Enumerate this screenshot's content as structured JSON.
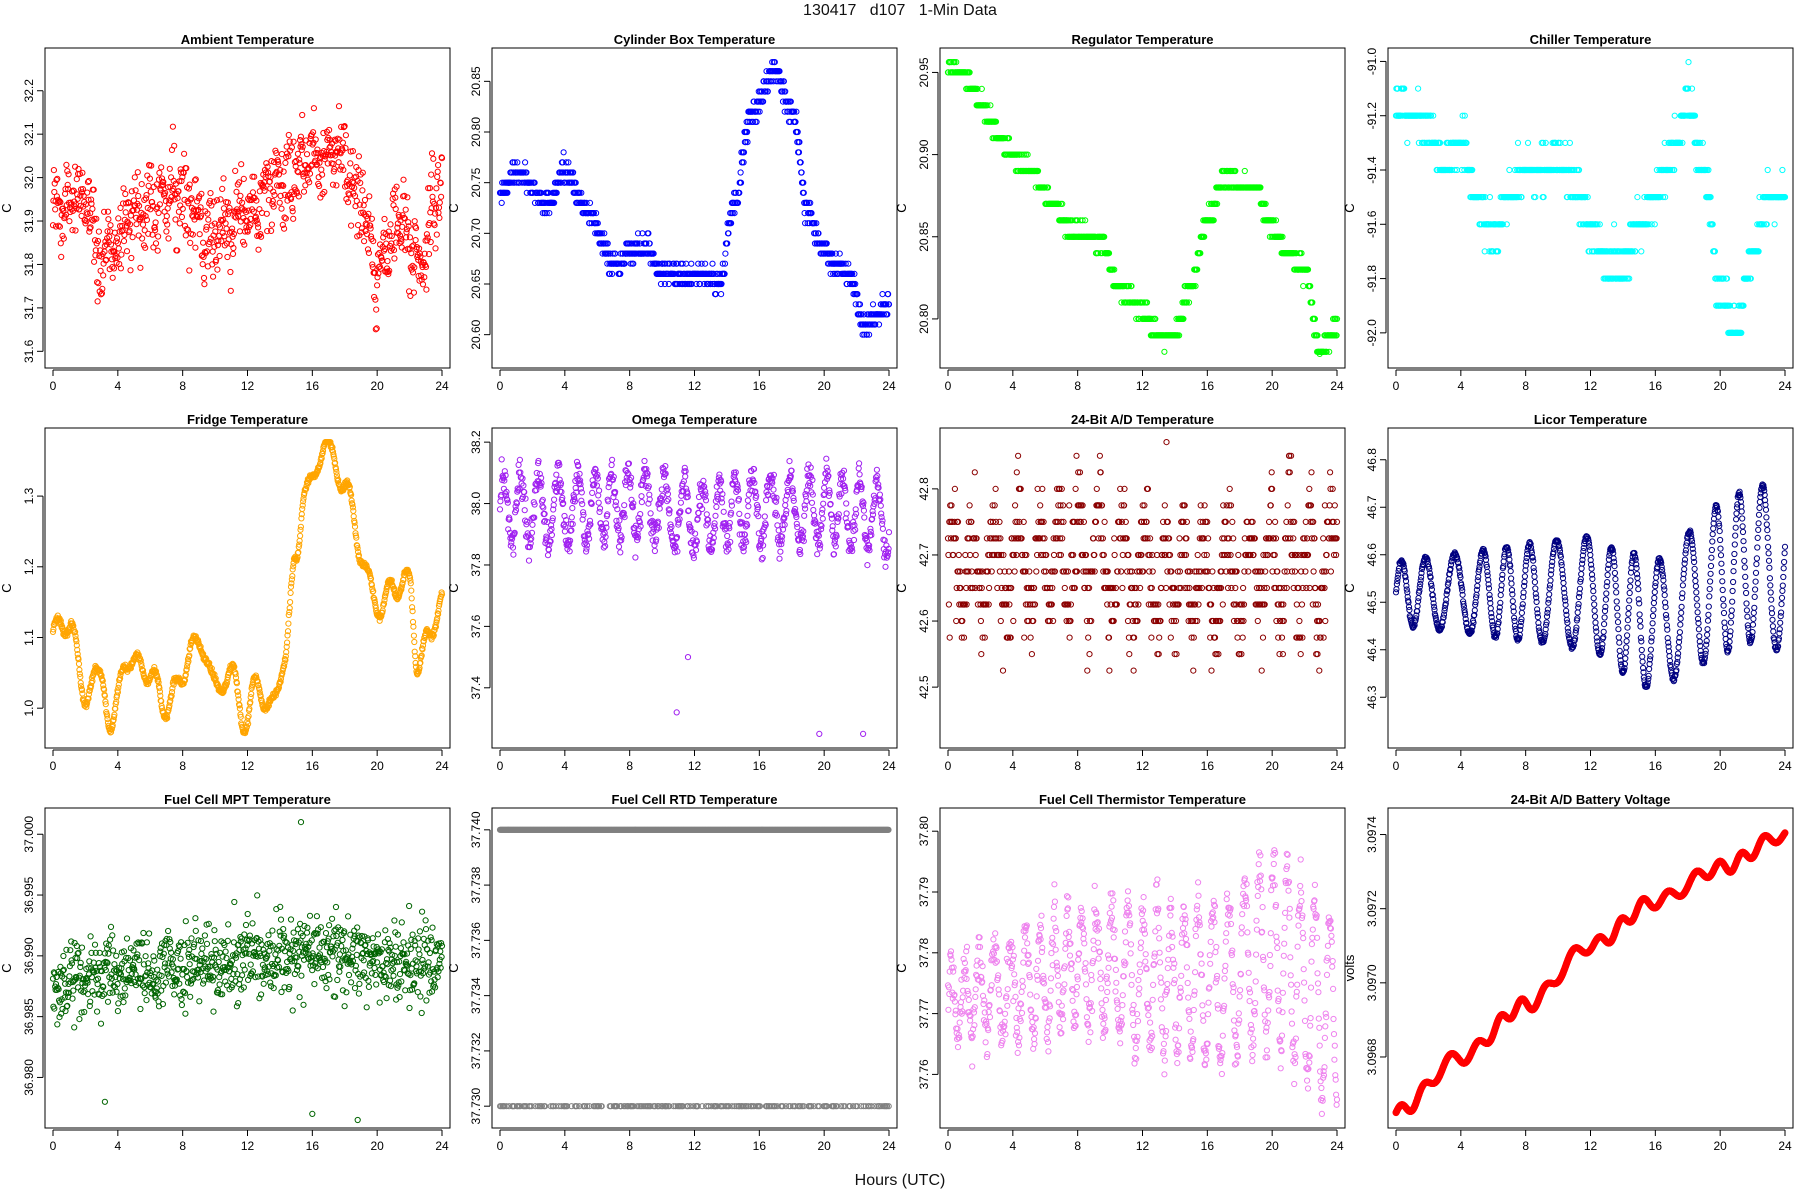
{
  "page": {
    "title": "130417   d107   1-Min Data",
    "xlabel": "Hours (UTC)"
  },
  "chart_data": [
    {
      "type": "scatter",
      "title": "Ambient Temperature",
      "ylabel": "C",
      "color": "#ff0000",
      "xlim": [
        0,
        24
      ],
      "xticks": [
        0,
        4,
        8,
        12,
        16,
        20,
        24
      ],
      "ylim": [
        31.58,
        32.28
      ],
      "yticks": [
        31.6,
        31.7,
        31.8,
        31.9,
        32.0,
        32.1,
        32.2
      ],
      "ytick_decimals": 1,
      "profile": {
        "knots": [
          [
            0,
            31.92
          ],
          [
            2,
            31.95
          ],
          [
            3,
            31.82
          ],
          [
            5,
            31.92
          ],
          [
            8,
            31.97
          ],
          [
            9.5,
            31.85
          ],
          [
            12,
            31.92
          ],
          [
            14,
            31.98
          ],
          [
            16,
            32.05
          ],
          [
            17.5,
            32.07
          ],
          [
            19,
            31.95
          ],
          [
            20,
            31.78
          ],
          [
            21.5,
            31.92
          ],
          [
            22.5,
            31.8
          ],
          [
            24,
            31.98
          ]
        ],
        "noise": 0.09,
        "osc_amp": 0.03,
        "osc_period": 0.8
      }
    },
    {
      "type": "scatter",
      "title": "Cylinder Box Temperature",
      "ylabel": "C",
      "color": "#0000ff",
      "xlim": [
        0,
        24
      ],
      "xticks": [
        0,
        4,
        8,
        12,
        16,
        20,
        24
      ],
      "ylim": [
        20.575,
        20.875
      ],
      "yticks": [
        20.6,
        20.65,
        20.7,
        20.75,
        20.8,
        20.85
      ],
      "ytick_decimals": 2,
      "profile": {
        "knots": [
          [
            0,
            20.74
          ],
          [
            1,
            20.76
          ],
          [
            3,
            20.73
          ],
          [
            4,
            20.76
          ],
          [
            5.5,
            20.72
          ],
          [
            7,
            20.67
          ],
          [
            9,
            20.69
          ],
          [
            10,
            20.66
          ],
          [
            12.5,
            20.66
          ],
          [
            13.5,
            20.65
          ],
          [
            14.5,
            20.73
          ],
          [
            15.5,
            20.82
          ],
          [
            17,
            20.86
          ],
          [
            18,
            20.82
          ],
          [
            19,
            20.72
          ],
          [
            20,
            20.68
          ],
          [
            21.5,
            20.66
          ],
          [
            22.5,
            20.61
          ],
          [
            24,
            20.63
          ]
        ],
        "noise": 0.012,
        "quant": 0.01
      }
    },
    {
      "type": "scatter",
      "title": "Regulator Temperature",
      "ylabel": "C",
      "color": "#00ff00",
      "xlim": [
        0,
        24
      ],
      "xticks": [
        0,
        4,
        8,
        12,
        16,
        20,
        24
      ],
      "ylim": [
        20.775,
        20.96
      ],
      "yticks": [
        20.8,
        20.85,
        20.9,
        20.95
      ],
      "ytick_decimals": 2,
      "profile": {
        "knots": [
          [
            0,
            20.955
          ],
          [
            1,
            20.95
          ],
          [
            2,
            20.93
          ],
          [
            3.5,
            20.905
          ],
          [
            5,
            20.89
          ],
          [
            6.5,
            20.87
          ],
          [
            7.5,
            20.855
          ],
          [
            9.5,
            20.845
          ],
          [
            10.5,
            20.82
          ],
          [
            12,
            20.805
          ],
          [
            13,
            20.79
          ],
          [
            14,
            20.79
          ],
          [
            15,
            20.82
          ],
          [
            16,
            20.86
          ],
          [
            17,
            20.885
          ],
          [
            19,
            20.88
          ],
          [
            20,
            20.855
          ],
          [
            21,
            20.84
          ],
          [
            22,
            20.83
          ],
          [
            23,
            20.78
          ],
          [
            24,
            20.795
          ]
        ],
        "noise": 0.005,
        "quant": 0.01
      }
    },
    {
      "type": "scatter",
      "title": "Chiller Temperature",
      "ylabel": "C",
      "color": "#00ffff",
      "xlim": [
        0,
        24
      ],
      "xticks": [
        0,
        4,
        8,
        12,
        16,
        20,
        24
      ],
      "ylim": [
        -92.1,
        -90.98
      ],
      "yticks": [
        -92.0,
        -91.8,
        -91.6,
        -91.4,
        -91.2,
        -91.0
      ],
      "ytick_decimals": 1,
      "profile": {
        "knots": [
          [
            0,
            -91.15
          ],
          [
            1,
            -91.2
          ],
          [
            2,
            -91.25
          ],
          [
            3,
            -91.4
          ],
          [
            4,
            -91.3
          ],
          [
            5,
            -91.5
          ],
          [
            6,
            -91.65
          ],
          [
            7,
            -91.5
          ],
          [
            8,
            -91.4
          ],
          [
            9,
            -91.4
          ],
          [
            10,
            -91.35
          ],
          [
            11,
            -91.45
          ],
          [
            12,
            -91.6
          ],
          [
            13,
            -91.75
          ],
          [
            14,
            -91.75
          ],
          [
            15,
            -91.6
          ],
          [
            16,
            -91.5
          ],
          [
            17,
            -91.35
          ],
          [
            18,
            -91.15
          ],
          [
            19,
            -91.4
          ],
          [
            20,
            -91.85
          ],
          [
            21,
            -92.0
          ],
          [
            22,
            -91.7
          ],
          [
            23,
            -91.5
          ],
          [
            24,
            -91.5
          ]
        ],
        "noise": 0.07,
        "quant": 0.1
      }
    },
    {
      "type": "scatter",
      "title": "Fridge Temperature",
      "ylabel": "C",
      "color": "#ffa500",
      "xlim": [
        0,
        24
      ],
      "xticks": [
        0,
        4,
        8,
        12,
        16,
        20,
        24
      ],
      "ylim": [
        0.955,
        1.385
      ],
      "yticks": [
        1.0,
        1.1,
        1.2,
        1.3
      ],
      "ytick_decimals": 1,
      "profile": {
        "knots": [
          [
            0,
            1.11
          ],
          [
            1,
            1.12
          ],
          [
            2,
            1.02
          ],
          [
            3,
            1.05
          ],
          [
            3.6,
            0.97
          ],
          [
            4.5,
            1.07
          ],
          [
            6,
            1.05
          ],
          [
            7,
            1.0
          ],
          [
            8,
            1.05
          ],
          [
            9,
            1.1
          ],
          [
            10,
            1.03
          ],
          [
            11,
            1.05
          ],
          [
            11.8,
            0.98
          ],
          [
            12.5,
            1.03
          ],
          [
            13.5,
            1.0
          ],
          [
            14.3,
            1.07
          ],
          [
            15,
            1.22
          ],
          [
            15.5,
            1.3
          ],
          [
            16.8,
            1.37
          ],
          [
            18,
            1.32
          ],
          [
            19,
            1.22
          ],
          [
            20,
            1.14
          ],
          [
            21,
            1.17
          ],
          [
            22,
            1.18
          ],
          [
            22.5,
            1.06
          ],
          [
            23.2,
            1.1
          ],
          [
            24,
            1.16
          ]
        ],
        "noise": 0.004,
        "osc_amp": 0.015,
        "osc_period": 1.2
      }
    },
    {
      "type": "scatter",
      "title": "Omega Temperature",
      "ylabel": "C",
      "color": "#a020f0",
      "xlim": [
        0,
        24
      ],
      "xticks": [
        0,
        4,
        8,
        12,
        16,
        20,
        24
      ],
      "ylim": [
        37.23,
        38.22
      ],
      "yticks": [
        37.4,
        37.6,
        37.8,
        38.0,
        38.2
      ],
      "ytick_decimals": 1,
      "profile": {
        "knots": [
          [
            0,
            37.98
          ],
          [
            4,
            37.98
          ],
          [
            8,
            38.0
          ],
          [
            12,
            37.96
          ],
          [
            16,
            37.98
          ],
          [
            20,
            37.98
          ],
          [
            24,
            37.95
          ]
        ],
        "noise": 0.05,
        "osc_amp": 0.11,
        "osc_period": 1.1
      },
      "outliers": [
        [
          10.9,
          37.32
        ],
        [
          11.6,
          37.5
        ],
        [
          19.7,
          37.25
        ],
        [
          22.4,
          37.25
        ]
      ]
    },
    {
      "type": "scatter",
      "title": "24-Bit A/D Temperature",
      "ylabel": "C",
      "color": "#8b0000",
      "xlim": [
        0,
        24
      ],
      "xticks": [
        0,
        4,
        8,
        12,
        16,
        20,
        24
      ],
      "ylim": [
        42.42,
        42.88
      ],
      "yticks": [
        42.5,
        42.6,
        42.7,
        42.8
      ],
      "ytick_decimals": 1,
      "profile": {
        "knots": [
          [
            0,
            42.68
          ],
          [
            4,
            42.68
          ],
          [
            8,
            42.7
          ],
          [
            12,
            42.67
          ],
          [
            16,
            42.66
          ],
          [
            20,
            42.68
          ],
          [
            24,
            42.68
          ]
        ],
        "noise": 0.08,
        "osc_amp": 0.07,
        "osc_period": 1.3,
        "quant": 0.025
      }
    },
    {
      "type": "scatter",
      "title": "Licor Temperature",
      "ylabel": "C",
      "color": "#000080",
      "xlim": [
        0,
        24
      ],
      "xticks": [
        0,
        4,
        8,
        12,
        16,
        20,
        24
      ],
      "ylim": [
        46.21,
        46.85
      ],
      "yticks": [
        46.3,
        46.4,
        46.5,
        46.6,
        46.7,
        46.8
      ],
      "ytick_decimals": 1,
      "profile": {
        "knots": [
          [
            0,
            46.52
          ],
          [
            8,
            46.52
          ],
          [
            12,
            46.52
          ],
          [
            14,
            46.48
          ],
          [
            16,
            46.45
          ],
          [
            18,
            46.5
          ],
          [
            20,
            46.55
          ],
          [
            22,
            46.58
          ],
          [
            24,
            46.57
          ]
        ],
        "noise": 0.004,
        "osc_amp": 0.12,
        "osc_period": 1.6,
        "osc_growth": true
      }
    },
    {
      "type": "scatter",
      "title": "Fuel Cell MPT Temperature",
      "ylabel": "C",
      "color": "#006400",
      "xlim": [
        0,
        24
      ],
      "xticks": [
        0,
        4,
        8,
        12,
        16,
        20,
        24
      ],
      "ylim": [
        36.9765,
        37.0015
      ],
      "yticks": [
        36.98,
        36.985,
        36.99,
        36.995,
        37.0
      ],
      "ytick_decimals": 3,
      "profile": {
        "knots": [
          [
            0,
            36.988
          ],
          [
            8,
            36.989
          ],
          [
            16,
            36.99
          ],
          [
            24,
            36.9895
          ]
        ],
        "noise": 0.0032
      },
      "outliers": [
        [
          15.3,
          37.001
        ],
        [
          16.0,
          36.977
        ],
        [
          18.8,
          36.9765
        ],
        [
          3.2,
          36.978
        ]
      ]
    },
    {
      "type": "scatter",
      "title": "Fuel Cell RTD Temperature",
      "ylabel": "C",
      "color": "#808080",
      "xlim": [
        0,
        24
      ],
      "xticks": [
        0,
        4,
        8,
        12,
        16,
        20,
        24
      ],
      "ylim": [
        37.7295,
        37.7405
      ],
      "yticks": [
        37.73,
        37.732,
        37.734,
        37.736,
        37.738,
        37.74
      ],
      "ytick_decimals": 3,
      "levels": [
        37.74,
        37.73
      ]
    },
    {
      "type": "scatter",
      "title": "Fuel Cell Thermistor Temperature",
      "ylabel": "C",
      "color": "#ee82ee",
      "xlim": [
        0,
        24
      ],
      "xticks": [
        0,
        4,
        8,
        12,
        16,
        20,
        24
      ],
      "ylim": [
        37.7525,
        37.8025
      ],
      "yticks": [
        37.76,
        37.77,
        37.78,
        37.79,
        37.8
      ],
      "ytick_decimals": 2,
      "profile": {
        "knots": [
          [
            0,
            37.772
          ],
          [
            4,
            37.774
          ],
          [
            8,
            37.778
          ],
          [
            12,
            37.776
          ],
          [
            16,
            37.775
          ],
          [
            20,
            37.78
          ],
          [
            24,
            37.77
          ]
        ],
        "noise": 0.004,
        "osc_amp": 0.011,
        "osc_period": 0.9,
        "osc_growth": true
      }
    },
    {
      "type": "line",
      "title": "24-Bit A/D Battery Voltage",
      "ylabel": "volts",
      "color": "#ff0000",
      "xlim": [
        0,
        24
      ],
      "xticks": [
        0,
        4,
        8,
        12,
        16,
        20,
        24
      ],
      "ylim": [
        3.09663,
        3.09745
      ],
      "yticks": [
        3.0968,
        3.097,
        3.0972,
        3.0974
      ],
      "ytick_decimals": 4,
      "profile": {
        "knots": [
          [
            0,
            3.09665
          ],
          [
            4,
            3.0968
          ],
          [
            8,
            3.09694
          ],
          [
            12,
            3.0971
          ],
          [
            16,
            3.09722
          ],
          [
            20,
            3.09731
          ],
          [
            24,
            3.0974
          ]
        ],
        "noise": 0.0,
        "osc_amp": 1.8e-05,
        "osc_period": 1.5
      }
    }
  ]
}
